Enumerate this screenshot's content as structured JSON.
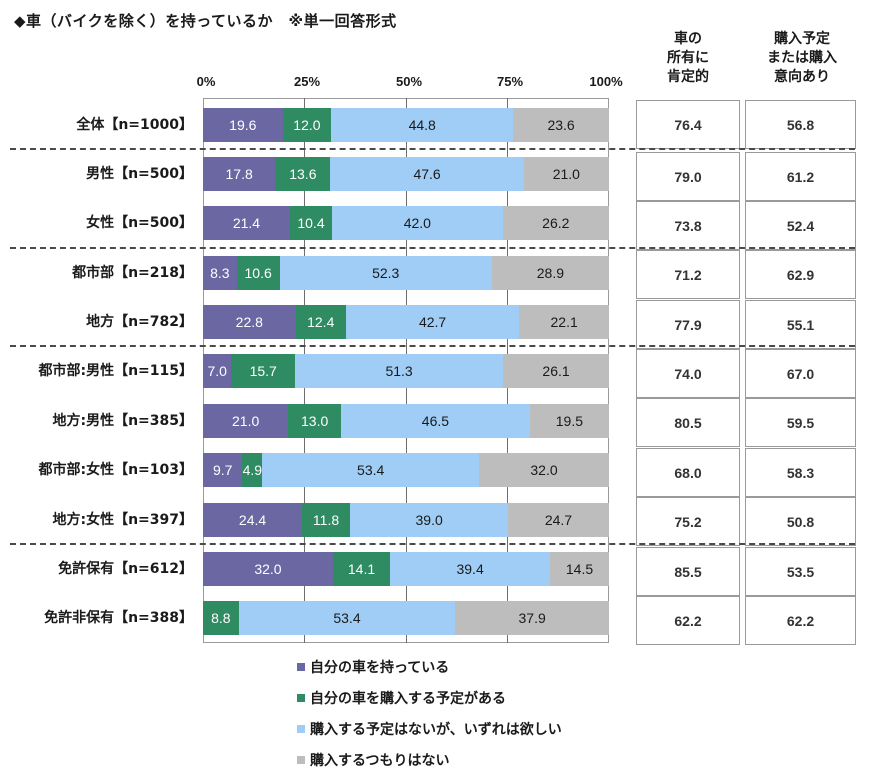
{
  "title": "◆車（バイクを除く）を持っているか　※単一回答形式",
  "axis": {
    "ticks": [
      "0%",
      "25%",
      "50%",
      "75%",
      "100%"
    ]
  },
  "columns": {
    "col1_header": [
      "車の",
      "所有に",
      "肯定的"
    ],
    "col2_header": [
      "購入予定",
      "または購入",
      "意向あり"
    ]
  },
  "colors": {
    "own": "#6a67a3",
    "plan": "#2e8b62",
    "want": "#9fcdf5",
    "no": "#bdbdbd"
  },
  "legend": [
    {
      "label": "自分の車を持っている",
      "color": "#6a67a3"
    },
    {
      "label": "自分の車を購入する予定がある",
      "color": "#2e8b62"
    },
    {
      "label": "購入する予定はないが、いずれは欲しい",
      "color": "#9fcdf5"
    },
    {
      "label": "購入するつもりはない",
      "color": "#bdbdbd"
    }
  ],
  "rows": [
    {
      "label": "全体【n=1000】",
      "values": [
        "19.6",
        "12.0",
        "44.8",
        "23.6"
      ],
      "col1": "76.4",
      "col2": "56.8"
    },
    {
      "label": "男性【n=500】",
      "values": [
        "17.8",
        "13.6",
        "47.6",
        "21.0"
      ],
      "col1": "79.0",
      "col2": "61.2"
    },
    {
      "label": "女性【n=500】",
      "values": [
        "21.4",
        "10.4",
        "42.0",
        "26.2"
      ],
      "col1": "73.8",
      "col2": "52.4"
    },
    {
      "label": "都市部【n=218】",
      "values": [
        "8.3",
        "10.6",
        "52.3",
        "28.9"
      ],
      "col1": "71.2",
      "col2": "62.9"
    },
    {
      "label": "地方【n=782】",
      "values": [
        "22.8",
        "12.4",
        "42.7",
        "22.1"
      ],
      "col1": "77.9",
      "col2": "55.1"
    },
    {
      "label": "都市部:男性【n=115】",
      "values": [
        "7.0",
        "15.7",
        "51.3",
        "26.1"
      ],
      "col1": "74.0",
      "col2": "67.0"
    },
    {
      "label": "地方:男性【n=385】",
      "values": [
        "21.0",
        "13.0",
        "46.5",
        "19.5"
      ],
      "col1": "80.5",
      "col2": "59.5"
    },
    {
      "label": "都市部:女性【n=103】",
      "values": [
        "9.7",
        "4.9",
        "53.4",
        "32.0"
      ],
      "col1": "68.0",
      "col2": "58.3"
    },
    {
      "label": "地方:女性【n=397】",
      "values": [
        "24.4",
        "11.8",
        "39.0",
        "24.7"
      ],
      "col1": "75.2",
      "col2": "50.8"
    },
    {
      "label": "免許保有【n=612】",
      "values": [
        "32.0",
        "14.1",
        "39.4",
        "14.5"
      ],
      "col1": "85.5",
      "col2": "53.5"
    },
    {
      "label": "免許非保有【n=388】",
      "values": [
        "",
        "8.8",
        "53.4",
        "37.9"
      ],
      "col1": "62.2",
      "col2": "62.2"
    }
  ],
  "chart_data": {
    "type": "bar",
    "orientation": "horizontal",
    "stacked": "100%",
    "title": "◆車（バイクを除く）を持っているか　※単一回答形式",
    "xlabel": "",
    "ylabel": "",
    "xlim": [
      0,
      100
    ],
    "x_ticks": [
      "0%",
      "25%",
      "50%",
      "75%",
      "100%"
    ],
    "grid": true,
    "legend_position": "bottom",
    "categories": [
      "全体【n=1000】",
      "男性【n=500】",
      "女性【n=500】",
      "都市部【n=218】",
      "地方【n=782】",
      "都市部:男性【n=115】",
      "地方:男性【n=385】",
      "都市部:女性【n=103】",
      "地方:女性【n=397】",
      "免許保有【n=612】",
      "免許非保有【n=388】"
    ],
    "series": [
      {
        "name": "自分の車を持っている",
        "color": "#6a67a3",
        "values": [
          19.6,
          17.8,
          21.4,
          8.3,
          22.8,
          7.0,
          21.0,
          9.7,
          24.4,
          32.0,
          0
        ]
      },
      {
        "name": "自分の車を購入する予定がある",
        "color": "#2e8b62",
        "values": [
          12.0,
          13.6,
          10.4,
          10.6,
          12.4,
          15.7,
          13.0,
          4.9,
          11.8,
          14.1,
          8.8
        ]
      },
      {
        "name": "購入する予定はないが、いずれは欲しい",
        "color": "#9fcdf5",
        "values": [
          44.8,
          47.6,
          42.0,
          52.3,
          42.7,
          51.3,
          46.5,
          53.4,
          39.0,
          39.4,
          53.4
        ]
      },
      {
        "name": "購入するつもりはない",
        "color": "#bdbdbd",
        "values": [
          23.6,
          21.0,
          26.2,
          28.9,
          22.1,
          26.1,
          19.5,
          32.0,
          24.7,
          14.5,
          37.9
        ]
      }
    ],
    "side_table": {
      "columns": [
        "車の所有に肯定的",
        "購入予定または購入意向あり"
      ],
      "values": [
        [
          76.4,
          56.8
        ],
        [
          79.0,
          61.2
        ],
        [
          73.8,
          52.4
        ],
        [
          71.2,
          62.9
        ],
        [
          77.9,
          55.1
        ],
        [
          74.0,
          67.0
        ],
        [
          80.5,
          59.5
        ],
        [
          68.0,
          58.3
        ],
        [
          75.2,
          50.8
        ],
        [
          85.5,
          53.5
        ],
        [
          62.2,
          62.2
        ]
      ]
    }
  }
}
